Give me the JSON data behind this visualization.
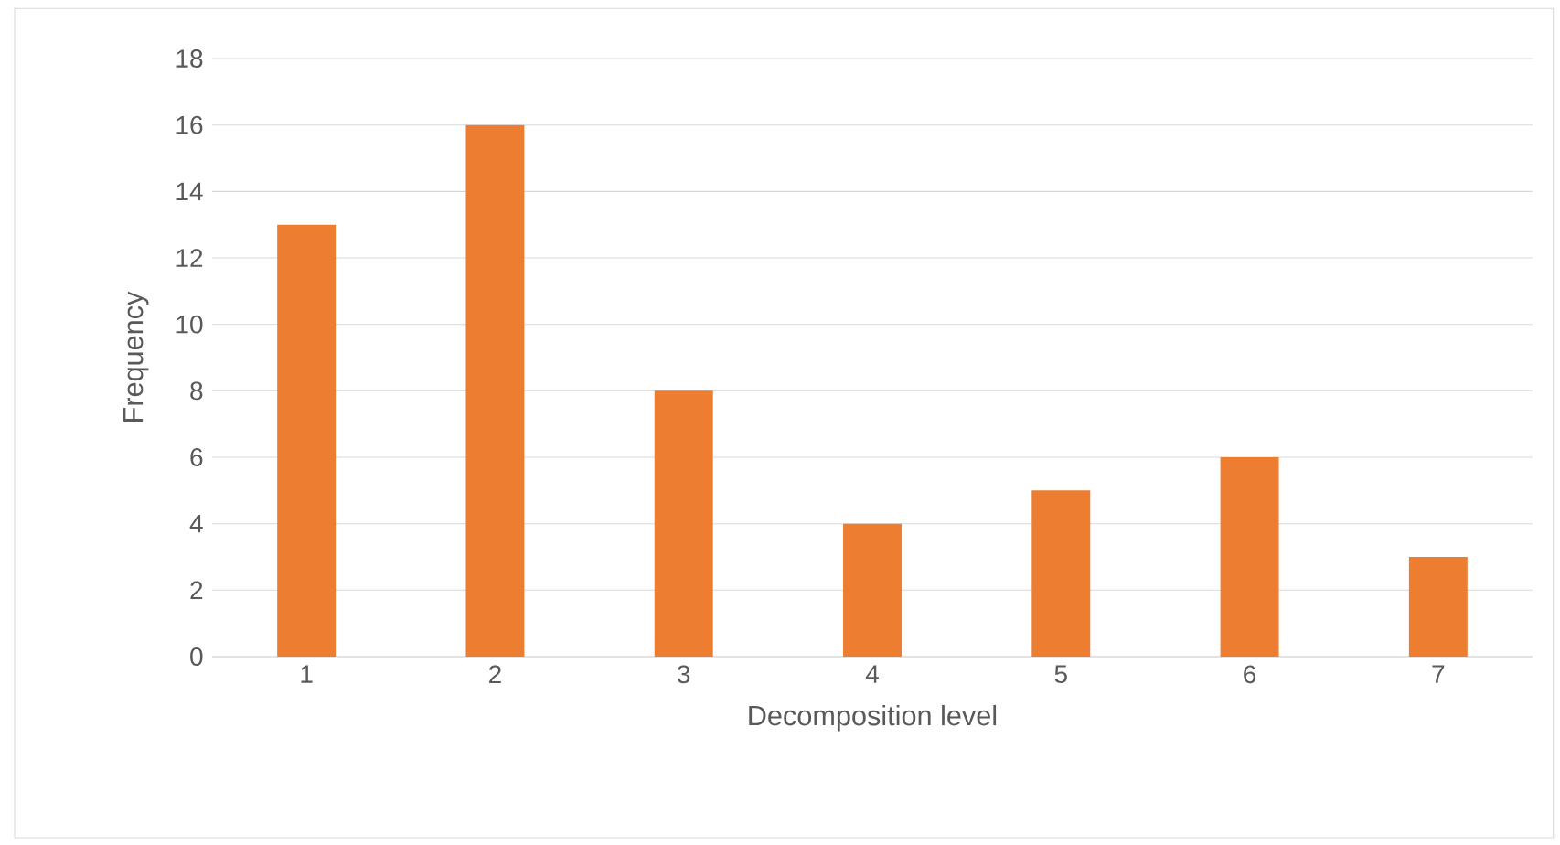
{
  "chart_data": {
    "type": "bar",
    "xlabel": "Decomposition level",
    "ylabel": "Frequency",
    "categories": [
      "1",
      "2",
      "3",
      "4",
      "5",
      "6",
      "7"
    ],
    "values": [
      13,
      16,
      8,
      4,
      5,
      6,
      3
    ],
    "color": "#ed7d31",
    "ylim": [
      0,
      18
    ],
    "yticks": [
      0,
      2,
      4,
      6,
      8,
      10,
      12,
      14,
      16,
      18
    ],
    "grid": "y"
  }
}
